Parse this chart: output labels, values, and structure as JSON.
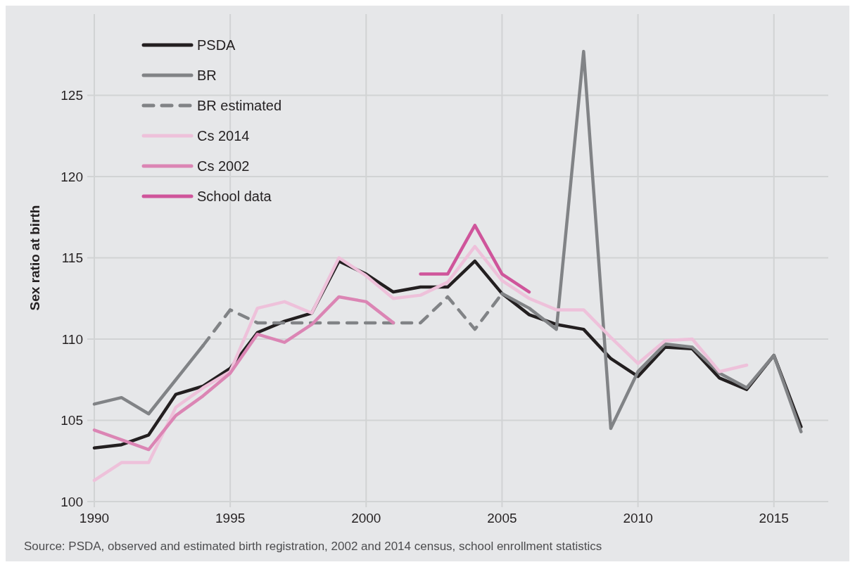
{
  "chart_data": {
    "type": "line",
    "ylabel": "Sex ratio at birth",
    "x": [
      1990,
      1991,
      1992,
      1993,
      1994,
      1995,
      1996,
      1997,
      1998,
      1999,
      2000,
      2001,
      2002,
      2003,
      2004,
      2005,
      2006,
      2007,
      2008,
      2009,
      2010,
      2011,
      2012,
      2013,
      2014,
      2015,
      2016
    ],
    "series": [
      {
        "name": "PSDA",
        "color": "#231f20",
        "values": [
          103.3,
          103.5,
          104.1,
          106.6,
          107.1,
          108.2,
          110.4,
          111.1,
          111.6,
          114.8,
          114.0,
          112.9,
          113.2,
          113.2,
          114.8,
          112.8,
          111.5,
          110.9,
          110.6,
          108.8,
          107.7,
          109.5,
          109.4,
          107.6,
          106.9,
          109.0,
          104.6
        ]
      },
      {
        "name": "BR",
        "color": "#818386",
        "values": [
          106.0,
          106.4,
          105.4,
          107.5,
          109.6,
          null,
          null,
          null,
          null,
          null,
          null,
          null,
          null,
          null,
          null,
          112.8,
          111.9,
          110.6,
          127.7,
          104.5,
          108.0,
          109.7,
          109.5,
          107.9,
          107.0,
          109.0,
          104.3
        ]
      },
      {
        "name": "BR estimated",
        "color": "#818386",
        "line_style": "dashed",
        "x": [
          1994,
          1995,
          1996,
          1997,
          1998,
          1999,
          2000,
          2001,
          2002,
          2003,
          2004,
          2005
        ],
        "values": [
          109.6,
          111.8,
          111.0,
          111.0,
          111.0,
          111.0,
          111.0,
          111.0,
          111.0,
          112.6,
          110.6,
          112.8
        ]
      },
      {
        "name": "Cs 2014",
        "color": "#eec1da",
        "values": [
          101.3,
          102.4,
          102.4,
          105.8,
          107.0,
          108.0,
          111.9,
          112.3,
          111.6,
          115.0,
          113.9,
          112.5,
          112.7,
          113.5,
          115.7,
          113.6,
          112.5,
          111.8,
          111.8,
          110.1,
          108.5,
          109.9,
          110.0,
          108.0,
          108.4,
          null,
          null
        ]
      },
      {
        "name": "Cs 2002",
        "color": "#db85b4",
        "values": [
          104.4,
          103.8,
          103.2,
          105.3,
          106.5,
          107.9,
          110.3,
          109.8,
          110.9,
          112.6,
          112.3,
          111.0,
          null,
          null,
          null,
          null,
          null,
          null,
          null,
          null,
          null,
          null,
          null,
          null,
          null,
          null,
          null
        ]
      },
      {
        "name": "School data",
        "color": "#cf559b",
        "x": [
          2002,
          2003,
          2004,
          2005,
          2006
        ],
        "values": [
          114.0,
          114.0,
          117.0,
          114.0,
          112.9
        ]
      }
    ],
    "xlim": [
      1990,
      2017
    ],
    "xticks": [
      1990,
      1995,
      2000,
      2005,
      2010,
      2015
    ],
    "ylim": [
      100,
      130
    ],
    "yticks": [
      100,
      105,
      110,
      115,
      120,
      125
    ],
    "grid": true,
    "legend": "top left",
    "line_style": "solid",
    "annotations": [
      "Source: PSDA, observed and estimated birth registration, 2002 and 2014 census, school enrollment statistics"
    ]
  }
}
